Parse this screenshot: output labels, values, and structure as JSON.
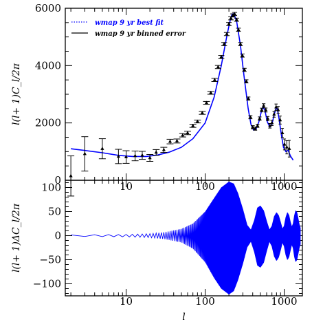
{
  "chart_data": [
    {
      "type": "line",
      "panel": "top",
      "xlabel": "",
      "ylabel": "l(l+ 1)C_l/2π",
      "xscale": "log",
      "xlim": [
        1.7,
        1700
      ],
      "ylim": [
        0,
        6000
      ],
      "yticks": [
        0,
        2000,
        4000,
        6000
      ],
      "ytick_labels": [
        "0",
        "2000",
        "4000",
        "6000"
      ],
      "xtick_labels": [
        "10",
        "100",
        "1000"
      ],
      "legend_position": "top-left",
      "series": [
        {
          "name": "wmap 9 yr best fit",
          "style": "line",
          "color": "#0000ff",
          "x": [
            2,
            3,
            5,
            8,
            12,
            18,
            25,
            35,
            50,
            70,
            100,
            130,
            160,
            190,
            210,
            220,
            230,
            250,
            280,
            310,
            350,
            380,
            410,
            440,
            480,
            520,
            540,
            570,
            610,
            660,
            700,
            740,
            790,
            820,
            860,
            920,
            980,
            1050,
            1120,
            1200,
            1300
          ],
          "y": [
            1100,
            1040,
            960,
            870,
            830,
            830,
            880,
            980,
            1150,
            1450,
            2000,
            2900,
            4000,
            5100,
            5650,
            5800,
            5810,
            5550,
            4700,
            3650,
            2500,
            1950,
            1750,
            1780,
            2050,
            2450,
            2540,
            2450,
            2050,
            1850,
            1950,
            2250,
            2520,
            2480,
            2150,
            1600,
            1150,
            1000,
            1050,
            850,
            700
          ]
        },
        {
          "name": "wmap 9 yr binned error",
          "style": "errorbar",
          "color": "#000000",
          "x": [
            2,
            3,
            5,
            8,
            10,
            13,
            16,
            20,
            24,
            30,
            36,
            44,
            52,
            60,
            70,
            80,
            92,
            104,
            118,
            132,
            146,
            160,
            174,
            188,
            200,
            212,
            224,
            236,
            250,
            264,
            280,
            296,
            314,
            332,
            352,
            374,
            400,
            430,
            460,
            490,
            520,
            550,
            585,
            620,
            660,
            700,
            745,
            790,
            840,
            890,
            950,
            1010,
            1080,
            1160
          ],
          "y": [
            150,
            920,
            1100,
            830,
            810,
            850,
            870,
            780,
            970,
            1060,
            1350,
            1370,
            1570,
            1650,
            1900,
            2050,
            2350,
            2700,
            3050,
            3500,
            3950,
            4300,
            4750,
            5100,
            5450,
            5650,
            5750,
            5800,
            5600,
            5250,
            4750,
            4350,
            3850,
            3450,
            2850,
            2200,
            1850,
            1800,
            1900,
            2150,
            2450,
            2600,
            2450,
            2150,
            1900,
            2000,
            2300,
            2550,
            2450,
            2100,
            1650,
            1250,
            1150,
            1100
          ],
          "err": [
            700,
            600,
            350,
            250,
            220,
            170,
            140,
            120,
            100,
            90,
            80,
            70,
            60,
            60,
            55,
            50,
            50,
            50,
            50,
            55,
            55,
            55,
            55,
            55,
            55,
            55,
            55,
            55,
            55,
            55,
            55,
            55,
            55,
            55,
            55,
            55,
            55,
            55,
            55,
            60,
            65,
            70,
            70,
            75,
            80,
            90,
            100,
            110,
            125,
            140,
            160,
            190,
            230,
            290
          ]
        }
      ]
    },
    {
      "type": "line",
      "panel": "bottom",
      "xlabel": "l",
      "ylabel": "l(l+ 1)ΔC_l/2π",
      "xscale": "log",
      "xlim": [
        1.7,
        1700
      ],
      "ylim": [
        -125,
        115
      ],
      "yticks": [
        -100,
        -50,
        0,
        50,
        100
      ],
      "ytick_labels": [
        "−100",
        "−50",
        "0",
        "50",
        "100"
      ],
      "xtick_labels": [
        "10",
        "100",
        "1000"
      ],
      "envelope": {
        "x": [
          2,
          10,
          20,
          30,
          50,
          70,
          100,
          130,
          160,
          200,
          230,
          260,
          300,
          340,
          380,
          420,
          460,
          500,
          550,
          600,
          650,
          700,
          750,
          800,
          850,
          900,
          950,
          1000,
          1050,
          1100,
          1150,
          1200,
          1250,
          1300,
          1350,
          1400,
          1450,
          1500,
          1550,
          1600
        ],
        "upper": [
          1.5,
          2.5,
          4,
          7,
          14,
          25,
          50,
          78,
          100,
          112,
          108,
          88,
          55,
          22,
          12,
          32,
          58,
          62,
          52,
          30,
          12,
          20,
          40,
          48,
          42,
          28,
          14,
          20,
          38,
          48,
          42,
          28,
          18,
          25,
          42,
          52,
          48,
          36,
          24,
          16
        ],
        "lower": [
          -1.5,
          -2.5,
          -4,
          -7,
          -14,
          -27,
          -55,
          -88,
          -110,
          -122,
          -115,
          -92,
          -58,
          -24,
          -12,
          -34,
          -62,
          -66,
          -56,
          -32,
          -12,
          -22,
          -43,
          -52,
          -45,
          -30,
          -14,
          -22,
          -40,
          -50,
          -44,
          -30,
          -18,
          -26,
          -44,
          -54,
          -50,
          -38,
          -26,
          -18
        ]
      }
    }
  ],
  "legend": {
    "fit_label": "wmap 9 yr best fit",
    "binned_label": "wmap 9 yr binned error"
  },
  "colors": {
    "fit": "#0000ff",
    "binned": "#000000"
  }
}
